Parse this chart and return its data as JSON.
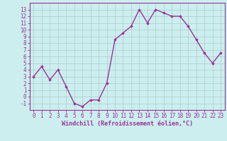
{
  "x": [
    0,
    1,
    2,
    3,
    4,
    5,
    6,
    7,
    8,
    9,
    10,
    11,
    12,
    13,
    14,
    15,
    16,
    17,
    18,
    19,
    20,
    21,
    22,
    23
  ],
  "y": [
    3,
    4.5,
    2.5,
    4,
    1.5,
    -1,
    -1.5,
    -0.5,
    -0.5,
    2,
    8.5,
    9.5,
    10.5,
    13,
    11,
    13,
    12.5,
    12,
    12,
    10.5,
    8.5,
    6.5,
    5,
    6.5
  ],
  "line_color": "#993399",
  "marker": "D",
  "marker_size": 1.8,
  "bg_color": "#cceeee",
  "grid_color": "#aacccc",
  "xlabel": "Windchill (Refroidissement éolien,°C)",
  "ylim": [
    -2,
    14
  ],
  "xlim": [
    -0.5,
    23.5
  ],
  "yticks": [
    -1,
    0,
    1,
    2,
    3,
    4,
    5,
    6,
    7,
    8,
    9,
    10,
    11,
    12,
    13
  ],
  "xticks": [
    0,
    1,
    2,
    3,
    4,
    5,
    6,
    7,
    8,
    9,
    10,
    11,
    12,
    13,
    14,
    15,
    16,
    17,
    18,
    19,
    20,
    21,
    22,
    23
  ],
  "tick_color": "#993399",
  "spine_color": "#993399",
  "linewidth": 1.0,
  "tick_fontsize": 5.5,
  "xlabel_fontsize": 6.0
}
